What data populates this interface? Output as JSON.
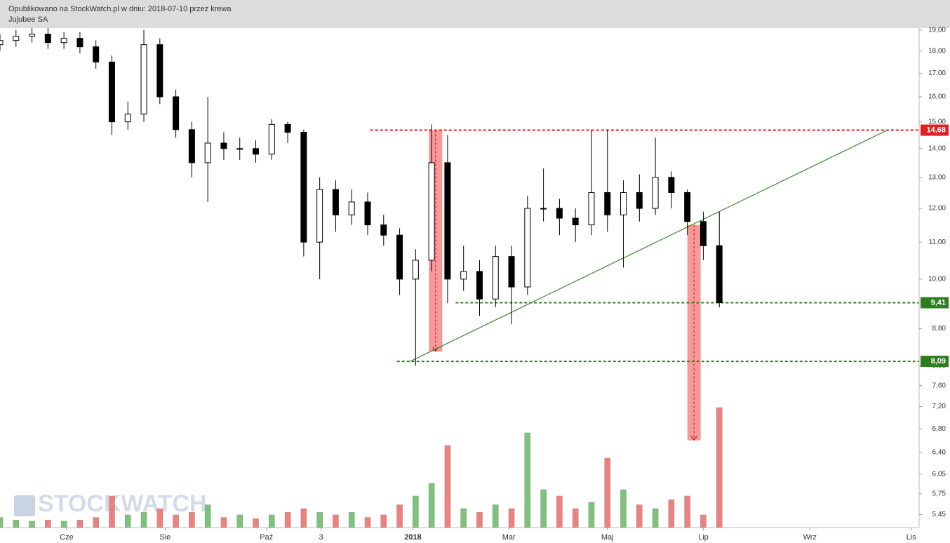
{
  "chart_data": {
    "type": "candlestick",
    "title": "Opublikowano na StockWatch.pl w dniu: 2018-07-10 przez krewa",
    "subtitle": "Jujubee SA",
    "watermark": "STOCKWATCH",
    "log": true,
    "xlim": [
      0,
      345
    ],
    "ylim": [
      5.29,
      19.1
    ],
    "xticks": [
      {
        "value": 25,
        "label": "Cze"
      },
      {
        "value": 62,
        "label": "Sie"
      },
      {
        "value": 100,
        "label": "Paź"
      },
      {
        "value": 120.5,
        "label": "3"
      },
      {
        "value": 155,
        "label": "2018"
      },
      {
        "value": 191,
        "label": "Mar"
      },
      {
        "value": 228,
        "label": "Maj"
      },
      {
        "value": 264,
        "label": "Lip"
      },
      {
        "value": 304,
        "label": "Wrz"
      },
      {
        "value": 342,
        "label": "Lis"
      }
    ],
    "yticks": [
      {
        "value": 19,
        "label": "19,00"
      },
      {
        "value": 18,
        "label": "18,00"
      },
      {
        "value": 17,
        "label": "17,00"
      },
      {
        "value": 16,
        "label": "16,00"
      },
      {
        "value": 15,
        "label": "15,00"
      },
      {
        "value": 14,
        "label": "14,00"
      },
      {
        "value": 13,
        "label": "13,00"
      },
      {
        "value": 12,
        "label": "12,00"
      },
      {
        "value": 11,
        "label": "11,00"
      },
      {
        "value": 10,
        "label": "10,00"
      },
      {
        "value": 8.8,
        "label": "8,80"
      },
      {
        "value": 8,
        "label": "8,00"
      },
      {
        "value": 7.6,
        "label": "7,60"
      },
      {
        "value": 7.2,
        "label": "7,20"
      },
      {
        "value": 6.8,
        "label": "6,80"
      },
      {
        "value": 6.4,
        "label": "6,40"
      },
      {
        "value": 6.05,
        "label": "6,05"
      },
      {
        "value": 5.75,
        "label": "5,75"
      },
      {
        "value": 5.45,
        "label": "5,45"
      }
    ],
    "x": [
      0,
      6,
      12,
      18,
      24,
      30,
      36,
      42,
      48,
      54,
      60,
      66,
      72,
      78,
      84,
      90,
      96,
      102,
      108,
      114,
      120,
      126,
      132,
      138,
      144,
      150,
      156,
      162,
      168,
      174,
      180,
      186,
      192,
      198,
      204,
      210,
      216,
      222,
      228,
      234,
      240,
      246,
      252,
      258,
      264,
      270
    ],
    "open": [
      18.3,
      18.5,
      18.7,
      18.8,
      18.4,
      18.6,
      18.2,
      17.5,
      15.0,
      15.3,
      18.3,
      16.0,
      14.7,
      13.5,
      14.2,
      14.0,
      14.0,
      13.8,
      14.9,
      14.6,
      11.0,
      12.6,
      11.8,
      12.2,
      11.5,
      11.2,
      10.0,
      10.5,
      13.5,
      10.0,
      10.2,
      9.5,
      10.6,
      9.8,
      12.0,
      12.0,
      11.7,
      11.5,
      12.5,
      11.8,
      12.5,
      12.0,
      13.0,
      12.5,
      11.6,
      10.9
    ],
    "high": [
      18.8,
      19.0,
      19.1,
      19.1,
      18.9,
      18.9,
      18.5,
      17.8,
      15.8,
      19.0,
      18.6,
      16.3,
      15.0,
      16.0,
      14.6,
      14.4,
      14.3,
      15.1,
      15.0,
      14.7,
      13.0,
      12.9,
      12.6,
      12.5,
      11.8,
      11.4,
      10.8,
      14.9,
      14.5,
      10.9,
      10.5,
      10.9,
      10.9,
      12.4,
      13.3,
      12.3,
      12.0,
      14.7,
      14.7,
      12.9,
      13.1,
      14.4,
      13.2,
      12.6,
      11.9,
      11.9
    ],
    "low": [
      18.0,
      18.2,
      18.4,
      18.1,
      18.1,
      17.9,
      17.2,
      14.5,
      14.7,
      15.0,
      15.7,
      14.4,
      13.0,
      12.2,
      13.6,
      13.6,
      13.5,
      13.6,
      14.2,
      10.6,
      10.0,
      11.3,
      11.5,
      11.2,
      10.9,
      9.6,
      8.0,
      10.2,
      9.4,
      9.7,
      9.1,
      9.3,
      8.9,
      9.6,
      11.6,
      11.2,
      11.0,
      11.2,
      11.3,
      10.3,
      11.6,
      11.8,
      12.0,
      11.2,
      10.5,
      9.3
    ],
    "close": [
      18.5,
      18.7,
      18.8,
      18.4,
      18.6,
      18.2,
      17.5,
      15.0,
      15.3,
      18.3,
      16.0,
      14.7,
      13.5,
      14.2,
      14.0,
      14.0,
      13.8,
      14.9,
      14.6,
      11.0,
      12.6,
      11.8,
      12.2,
      11.5,
      11.2,
      10.0,
      10.5,
      13.5,
      10.0,
      10.2,
      9.5,
      10.6,
      9.8,
      12.0,
      12.0,
      11.7,
      11.5,
      12.5,
      11.8,
      12.5,
      12.0,
      13.0,
      12.5,
      11.6,
      10.9,
      9.41
    ],
    "volume": [
      8,
      6,
      5,
      6,
      5,
      6,
      8,
      25,
      10,
      12,
      15,
      10,
      12,
      18,
      8,
      10,
      7,
      10,
      12,
      15,
      12,
      10,
      12,
      8,
      10,
      18,
      25,
      35,
      65,
      15,
      12,
      18,
      15,
      75,
      30,
      25,
      15,
      20,
      55,
      30,
      18,
      15,
      22,
      25,
      10,
      95
    ],
    "volume_lim": [
      0,
      100
    ],
    "up_color": "#7cc47c",
    "down_color": "#f08080",
    "levels": [
      {
        "value": 14.68,
        "label": "14,68",
        "color": "#e02020",
        "start": 139
      },
      {
        "value": 9.41,
        "label": "9,41",
        "color": "#2e7d1e",
        "start": 171
      },
      {
        "value": 8.09,
        "label": "8,09",
        "color": "#2e7d1e",
        "start": 149
      }
    ],
    "trendline": {
      "x": [
        154,
        333
      ],
      "y": [
        8.09,
        14.68
      ],
      "color": "#3a8a2a"
    },
    "projections": [
      {
        "x": [
          161,
          166
        ],
        "y": [
          14.68,
          8.3
        ]
      },
      {
        "x": [
          258,
          263
        ],
        "y": [
          11.5,
          6.6
        ]
      }
    ]
  }
}
